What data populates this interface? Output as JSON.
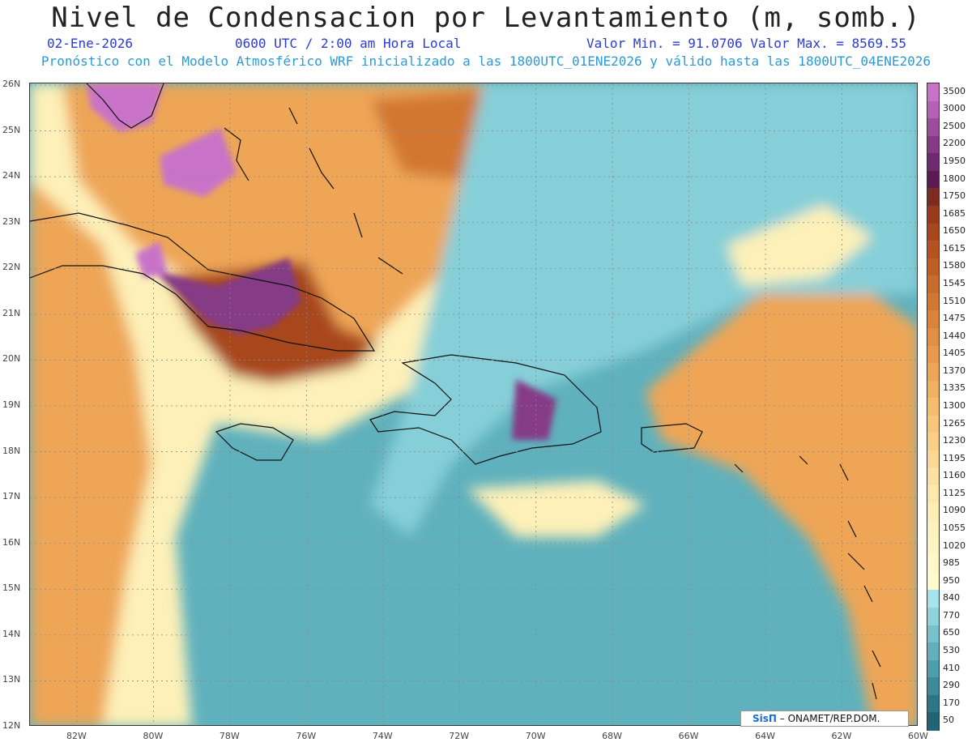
{
  "title": "Nivel de Condensacion por Levantamiento (m, somb.)",
  "header": {
    "date": "02-Ene-2026",
    "time": "0600 UTC / 2:00 am Hora Local",
    "minmax": "Valor Min. = 91.0706  Valor Max. = 8569.55",
    "subtitle": "Pronóstico con el Modelo Atmosférico WRF inicializado a las 1800UTC_01ENE2026 y válido hasta las  1800UTC_04ENE2026"
  },
  "credit": {
    "logo": "SisΠ",
    "text": " – ONAMET/REP.DOM."
  },
  "lat_labels": [
    "26N",
    "25N",
    "24N",
    "23N",
    "22N",
    "21N",
    "20N",
    "19N",
    "18N",
    "17N",
    "16N",
    "15N",
    "14N",
    "13N",
    "12N"
  ],
  "lon_labels": [
    "82W",
    "80W",
    "78W",
    "76W",
    "74W",
    "72W",
    "70W",
    "68W",
    "66W",
    "64W",
    "62W",
    "60W"
  ],
  "colorbar": {
    "labels": [
      "3500",
      "3000",
      "2500",
      "2200",
      "1950",
      "1800",
      "1750",
      "1685",
      "1650",
      "1615",
      "1580",
      "1545",
      "1510",
      "1475",
      "1440",
      "1405",
      "1370",
      "1335",
      "1300",
      "1265",
      "1230",
      "1195",
      "1160",
      "1125",
      "1090",
      "1055",
      "1020",
      "985",
      "950",
      "840",
      "770",
      "650",
      "530",
      "410",
      "290",
      "170",
      "50"
    ],
    "colors": [
      "#c873c8",
      "#b562b4",
      "#9b4c9b",
      "#853a86",
      "#6e2a70",
      "#5a1a52",
      "#7c2c22",
      "#983a1c",
      "#a8461e",
      "#b45222",
      "#bf5f26",
      "#c96b2b",
      "#d27732",
      "#db8339",
      "#e38f42",
      "#ea9a4c",
      "#eea656",
      "#f2b162",
      "#f5bc6e",
      "#f7c67b",
      "#f9cf87",
      "#fad894",
      "#fbe1a1",
      "#fce8ac",
      "#fdeeb5",
      "#fdf2bd",
      "#fef5c4",
      "#fef8ca",
      "#fefbcf",
      "#a6e3ea",
      "#8fd3dc",
      "#78c2cc",
      "#62b0bc",
      "#4e9dab",
      "#3d8a99",
      "#2e7687",
      "#226474"
    ]
  },
  "colors": {
    "sea_low": "#5fb1bd",
    "sea_mid": "#86cfd8",
    "sea_light": "#a6e3ea",
    "yellow": "#fdf0b8",
    "orange": "#eea656",
    "orange_dark": "#d27732",
    "brown": "#a8461e",
    "purple": "#853a86",
    "magenta": "#c873c8"
  }
}
